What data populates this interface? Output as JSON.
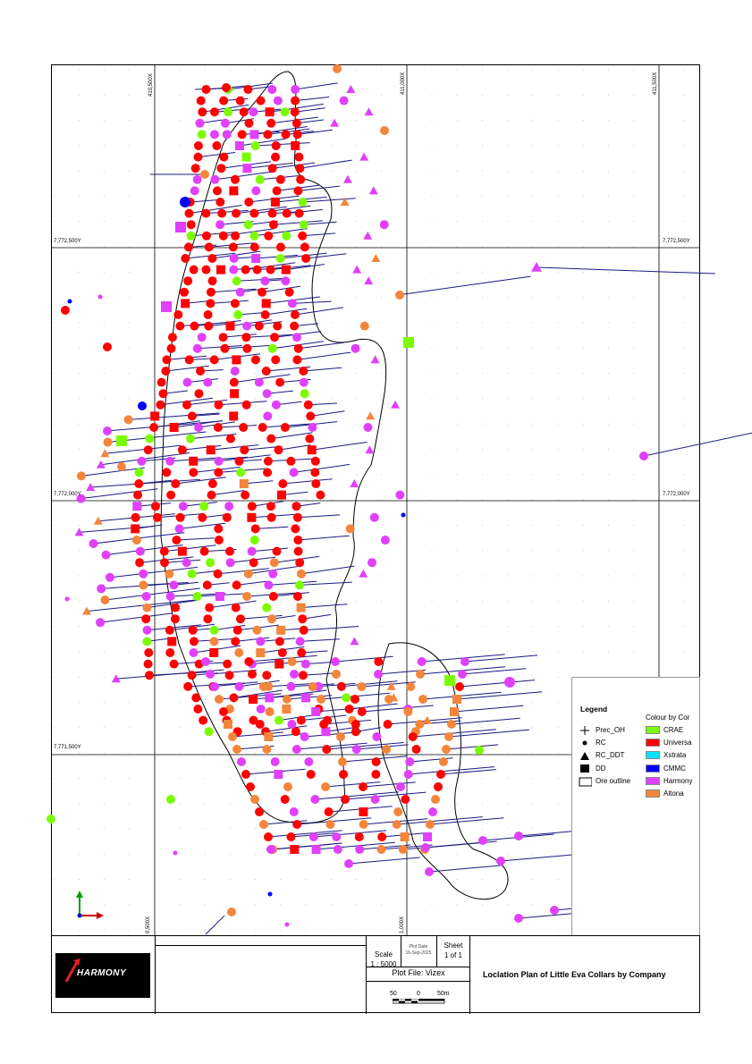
{
  "grid_labels": {
    "easting_top": [
      "410,500X",
      "411,000X",
      "411,500X"
    ],
    "easting_bottom": [
      "0,500X",
      "1,000X"
    ],
    "northing": [
      "7,772,500Y",
      "7,772,000Y",
      "7,771,500Y"
    ]
  },
  "legend": {
    "title": "Legend",
    "colour_title": "Colour by Cor",
    "symbols": [
      {
        "label": "Prec_OH",
        "shape": "cross"
      },
      {
        "label": "RC",
        "shape": "dot"
      },
      {
        "label": "RC_DDT",
        "shape": "triangle"
      },
      {
        "label": "DD",
        "shape": "square"
      },
      {
        "label": "Ore outline",
        "shape": "outline"
      }
    ],
    "companies": [
      {
        "name": "CRAE",
        "color": "#7cfc00"
      },
      {
        "name": "Universa",
        "color": "#ff0000"
      },
      {
        "name": "Xstrata",
        "color": "#00e5ff"
      },
      {
        "name": "CMMC",
        "color": "#0000ff"
      },
      {
        "name": "Harmony",
        "color": "#e040fb"
      },
      {
        "name": "Altona",
        "color": "#f4863c"
      }
    ]
  },
  "title_block": {
    "logo_text": "HARMONY",
    "scale_label": "Scale",
    "scale_value": "1 : 5000",
    "plot_date_label": "Plot Date",
    "plot_date_value": "16-Sep-2025",
    "sheet_label": "Sheet",
    "sheet_value": "1 of 1",
    "plot_file": "Plot File: Vizex",
    "scalebar_labels": [
      "50",
      "0",
      "50m"
    ],
    "plan_title": "Loclation Plan of Little Eva Collars by Company"
  },
  "colors": {
    "trace": "#1a1a80",
    "outline": "#000000",
    "grid": "#000000"
  }
}
